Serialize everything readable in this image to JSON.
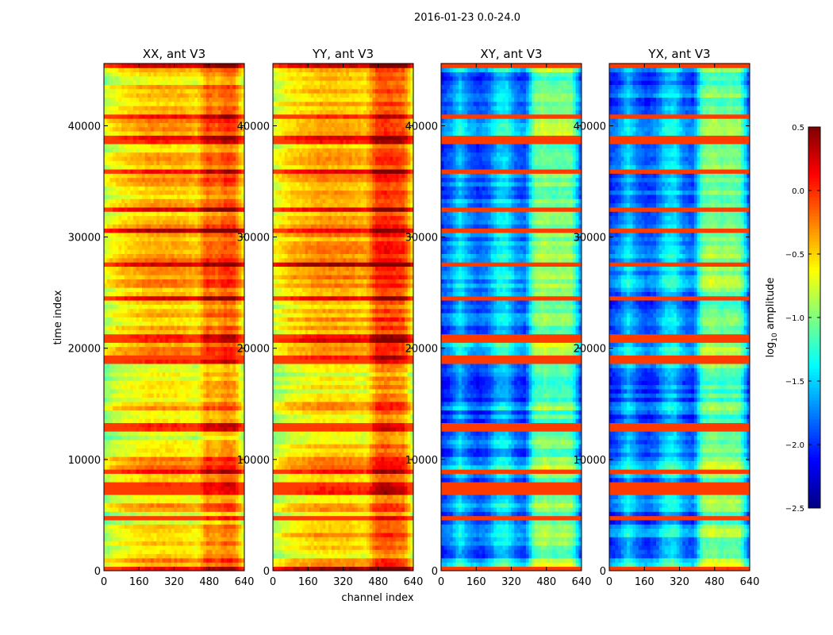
{
  "chart_data": {
    "type": "heatmap",
    "suptitle": "2016-01-23 0.0-24.0",
    "xlabel": "channel index",
    "ylabel": "time index",
    "xlim": [
      0,
      640
    ],
    "ylim": [
      0,
      45600
    ],
    "xticks": [
      "0",
      "160",
      "320",
      "480",
      "640"
    ],
    "yticks": [
      "0",
      "10000",
      "20000",
      "30000",
      "40000"
    ],
    "colorbar": {
      "label": "log10 amplitude",
      "label_main": "log",
      "label_sub": "10",
      "label_rest": " amplitude",
      "range": [
        -2.5,
        0.5
      ],
      "ticks": [
        "0.5",
        "0.0",
        "−0.5",
        "−1.0",
        "−1.5",
        "−2.0",
        "−2.5"
      ],
      "colormap": "jet"
    },
    "panels": [
      {
        "title": "XX, ant V3",
        "channel_profile": [
          -0.85,
          -0.7,
          -0.6,
          -0.55,
          -0.5,
          -0.45,
          -0.45,
          -0.45,
          -0.45,
          -0.5,
          -0.55,
          -0.2,
          -0.3,
          -0.15,
          -0.2,
          -0.7
        ],
        "time_offset": [
          0.3,
          -0.3,
          0,
          0.1,
          -0.4,
          0.3,
          -0.2,
          -0.3,
          0,
          0.3,
          -0.1,
          -0.5,
          -0.4,
          -0.3,
          0.2,
          -0.4,
          -0.3,
          -0.5,
          -0.4,
          0.3,
          0,
          0,
          0.1,
          -0.1,
          0,
          0.3,
          0.1,
          0.3,
          0.2,
          0.15,
          0.2,
          0,
          0.1,
          0,
          0.2,
          0.2,
          0.15,
          -0.2,
          0.3,
          0.25,
          -0.1,
          0,
          0.1,
          -0.2,
          0.3
        ]
      },
      {
        "title": "YY, ant V3",
        "channel_profile": [
          -0.8,
          -0.65,
          -0.55,
          -0.5,
          -0.45,
          -0.4,
          -0.4,
          -0.4,
          -0.4,
          -0.45,
          -0.5,
          -0.1,
          -0.05,
          -0.1,
          -0.15,
          -0.7
        ],
        "time_offset": [
          0.3,
          -0.3,
          0,
          0.1,
          -0.4,
          0.3,
          -0.2,
          -0.3,
          0,
          0.3,
          -0.1,
          -0.5,
          -0.4,
          -0.3,
          0.2,
          -0.4,
          -0.3,
          -0.5,
          -0.4,
          0.3,
          0,
          0,
          0.1,
          -0.1,
          0,
          0.3,
          0.1,
          0.3,
          0.2,
          0.15,
          0.2,
          0,
          0.1,
          0,
          0.2,
          0.2,
          0.15,
          -0.2,
          0.3,
          0.25,
          -0.1,
          0,
          0.1,
          -0.2,
          0.3
        ]
      },
      {
        "title": "XY, ant V3",
        "channel_profile": [
          -2.0,
          -1.85,
          -1.5,
          -1.8,
          -1.95,
          -1.85,
          -1.5,
          -1.45,
          -1.8,
          -1.9,
          -1.1,
          -1.0,
          -1.1,
          -1.05,
          -1.1,
          -1.9
        ],
        "time_offset": [
          0.6,
          -0.2,
          0.1,
          0.3,
          -0.1,
          0.5,
          0.2,
          -0.2,
          0.3,
          0.4,
          -0.1,
          0.1,
          -0.3,
          -0.2,
          0.3,
          -0.2,
          -0.3,
          0,
          0.1,
          0.5,
          0.1,
          0,
          0.1,
          -0.1,
          0,
          0.3,
          0.1,
          0.3,
          0.2,
          0.15,
          0.2,
          0,
          0.1,
          0,
          0.1,
          0.1,
          0.15,
          -0.2,
          0.5,
          0.3,
          -0.1,
          0,
          0.1,
          -0.2,
          0.4
        ]
      },
      {
        "title": "YX, ant V3",
        "channel_profile": [
          -2.0,
          -1.85,
          -1.5,
          -1.8,
          -1.95,
          -1.85,
          -1.5,
          -1.45,
          -1.8,
          -1.9,
          -1.1,
          -1.0,
          -1.1,
          -1.05,
          -1.1,
          -1.9
        ],
        "time_offset": [
          0.6,
          -0.2,
          0.1,
          0.3,
          -0.1,
          0.5,
          0.2,
          -0.2,
          0.3,
          0.4,
          -0.1,
          0.1,
          -0.3,
          -0.2,
          0.3,
          -0.2,
          -0.3,
          0,
          0.1,
          0.5,
          0.1,
          0,
          0.1,
          -0.1,
          0,
          0.3,
          0.1,
          0.3,
          0.2,
          0.15,
          0.2,
          0,
          0.1,
          0,
          0.1,
          0.1,
          0.15,
          -0.2,
          0.5,
          0.3,
          -0.1,
          0,
          0.1,
          -0.2,
          0.4
        ]
      }
    ],
    "bright_rows": [
      300,
      4600,
      7100,
      7600,
      9000,
      12600,
      13000,
      19000,
      20800,
      21000,
      24500,
      27700,
      30500,
      32500,
      36000,
      38500,
      39000,
      40800,
      45300
    ]
  }
}
